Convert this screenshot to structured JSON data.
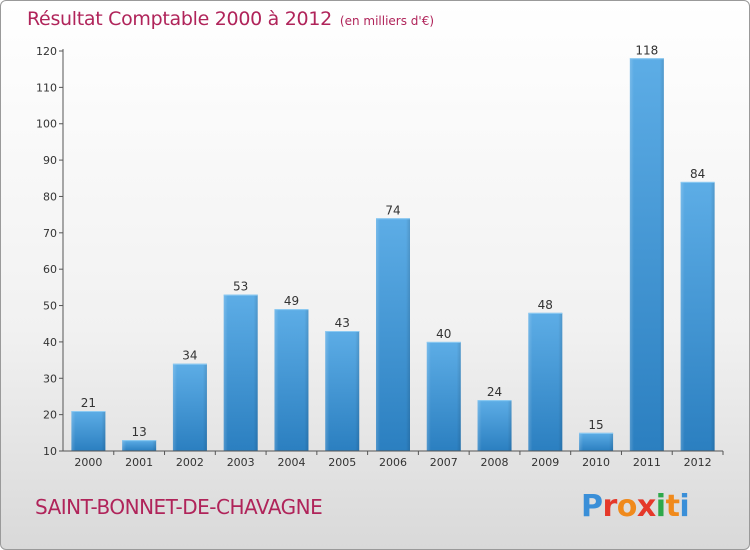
{
  "chart_data": {
    "type": "bar",
    "title": "Résultat Comptable 2000 à 2012",
    "unit_label": "(en milliers d'€)",
    "xlabel": "",
    "ylabel": "",
    "categories": [
      "2000",
      "2001",
      "2002",
      "2003",
      "2004",
      "2005",
      "2006",
      "2007",
      "2008",
      "2009",
      "2010",
      "2011",
      "2012"
    ],
    "values": [
      21,
      13,
      34,
      53,
      49,
      43,
      74,
      40,
      24,
      48,
      15,
      118,
      84
    ],
    "ylim": [
      10,
      120
    ],
    "yticks": [
      10,
      20,
      30,
      40,
      50,
      60,
      70,
      80,
      90,
      100,
      110,
      120
    ],
    "grid": false,
    "data_labels": true,
    "colors": {
      "bar_top": "#5dade6",
      "bar_bottom": "#2b7fc0",
      "text": "#333333",
      "axis": "#555555"
    }
  },
  "footer": {
    "commune": "SAINT-BONNET-DE-CHAVAGNE",
    "logo": "Proxiti",
    "logo_colors": [
      "#3a8fd8",
      "#e5382a",
      "#f08a1c",
      "#e5382a",
      "#2ea84a",
      "#f08a1c",
      "#3a8fd8"
    ]
  }
}
